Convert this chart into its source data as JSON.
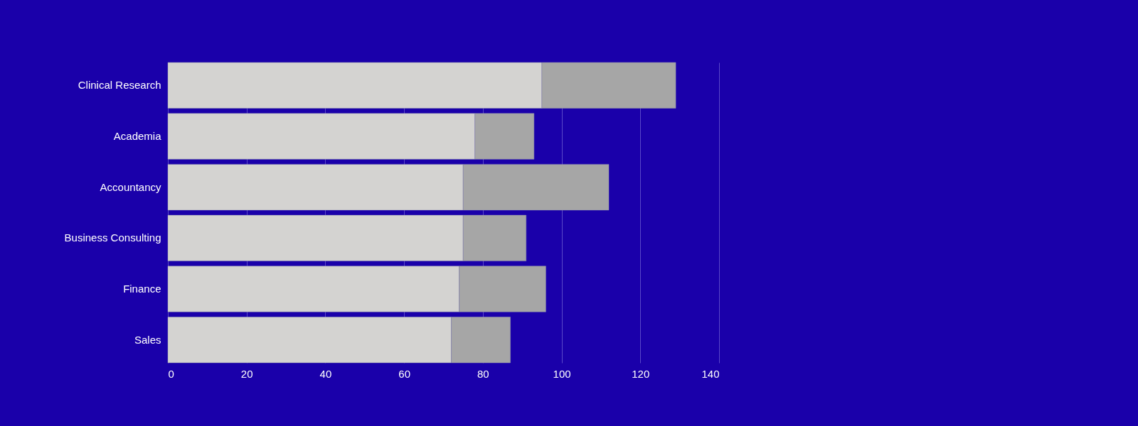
{
  "chart_data": {
    "type": "bar",
    "orientation": "horizontal",
    "stacked": true,
    "categories": [
      "Clinical Research",
      "Academia",
      "Accountancy",
      "Business Consulting",
      "Finance",
      "Sales"
    ],
    "series": [
      {
        "color": "#d4d3d1",
        "values": [
          95,
          78,
          75,
          75,
          74,
          72
        ]
      },
      {
        "color": "#a6a6a6",
        "values": [
          34,
          15,
          37,
          16,
          22,
          15
        ]
      }
    ],
    "xlim": [
      0,
      140
    ],
    "xticks": [
      0,
      20,
      40,
      60,
      80,
      100,
      120,
      140
    ],
    "grid": "x",
    "legend": false
  }
}
